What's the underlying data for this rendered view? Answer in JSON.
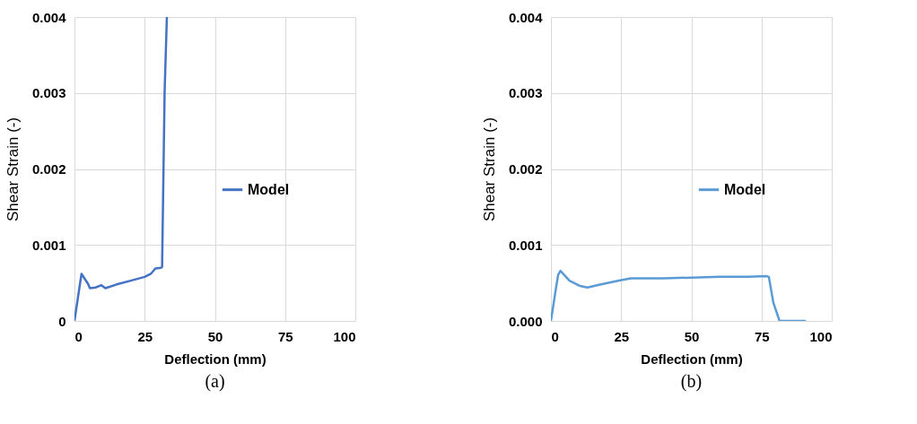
{
  "chart_data": [
    {
      "type": "line",
      "xlabel": "Deflection (mm)",
      "ylabel": "Shear Strain (-)",
      "annotations": [
        "(a)"
      ],
      "legend": "right",
      "grid": true,
      "marker": "none",
      "line_style": "solid",
      "xlim": [
        0,
        100
      ],
      "xticks": [
        0,
        25,
        50,
        75,
        100
      ],
      "ylim": [
        0,
        0.004
      ],
      "yticks": [
        0,
        0.001,
        0.002,
        0.003,
        0.004
      ],
      "series": [
        {
          "name": "Model",
          "color": "#4472c4",
          "x": [
            0,
            1.2,
            2.5,
            4.8,
            5.5,
            7.5,
            9.6,
            11,
            15,
            20,
            25,
            27.2,
            28.8,
            30.8,
            31.2,
            32.1,
            32.9
          ],
          "values": [
            0,
            0.0003,
            0.00062,
            0.00049,
            0.00043,
            0.00044,
            0.00047,
            0.00043,
            0.00048,
            0.00053,
            0.00058,
            0.00062,
            0.00069,
            0.0007,
            0.00071,
            0.00302,
            0.004
          ]
        }
      ]
    },
    {
      "type": "line",
      "xlabel": "Deflection (mm)",
      "ylabel": "Shear Strain (-)",
      "annotations": [
        "(b)"
      ],
      "legend": "right",
      "grid": true,
      "marker": "none",
      "line_style": "solid",
      "xlim": [
        0,
        100
      ],
      "xticks": [
        0,
        25,
        50,
        75,
        100
      ],
      "ylim": [
        0,
        0.004
      ],
      "yticks": [
        {
          "value": 0,
          "label": "0.000"
        },
        0.001,
        0.002,
        0.003,
        0.004
      ],
      "series": [
        {
          "name": "Model",
          "color": "#5b9bd5",
          "x": [
            0,
            1.8,
            2.6,
            3.4,
            6.6,
            10.4,
            13,
            17.8,
            24.2,
            28.5,
            40,
            49.9,
            60,
            70,
            76.6,
            77.6,
            79.2,
            81.4,
            90.8
          ],
          "values": [
            0,
            0.00043,
            0.00061,
            0.00066,
            0.00053,
            0.00046,
            0.00044,
            0.00048,
            0.00053,
            0.00056,
            0.00056,
            0.00057,
            0.00058,
            0.00058,
            0.00059,
            0.00058,
            0.00024,
            0,
            0
          ]
        }
      ]
    }
  ]
}
